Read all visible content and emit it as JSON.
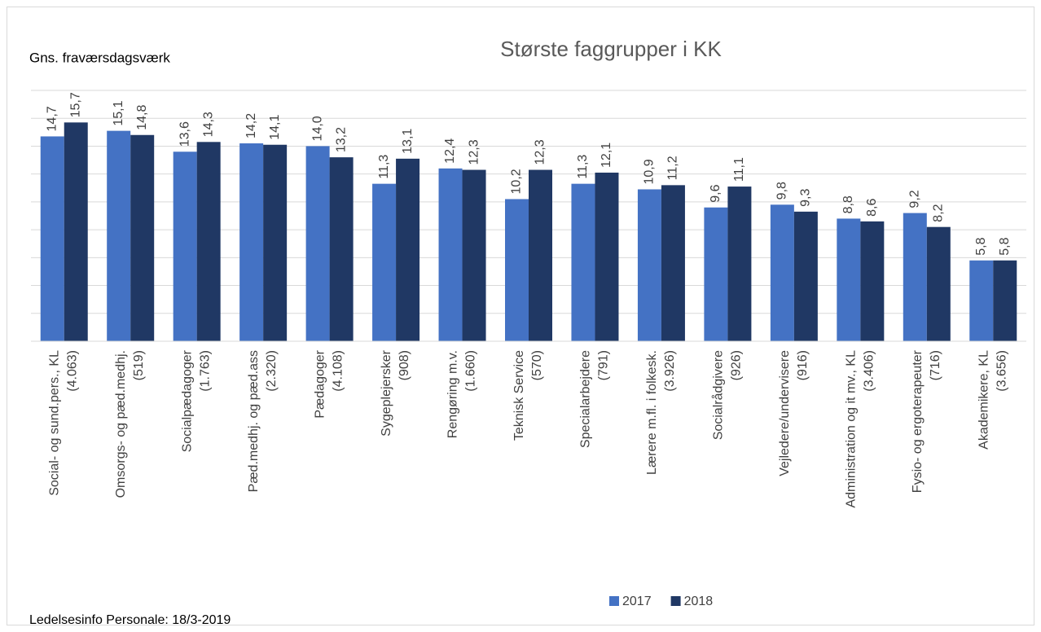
{
  "chart_data": {
    "type": "bar",
    "title": "Største faggrupper i KK",
    "y_label": "Gns. fraværsdagsværk",
    "footer": "Ledelsesinfo Personale: 18/3-2019",
    "categories": [
      "Social- og sund.pers., KL\n(4.063)",
      "Omsorgs- og pæd.medhj.\n(519)",
      "Socialpædagoger\n(1.763)",
      "Pæd.medhj. og pæd.ass\n(2.320)",
      "Pædagoger\n(4.108)",
      "Sygeplejersker\n(908)",
      "Rengøring m.v.\n(1.660)",
      "Teknisk Service\n(570)",
      "Specialarbejdere\n(791)",
      "Lærere m.fl. i folkesk.\n(3.926)",
      "Socialrådgivere\n(926)",
      "Vejledere/undervisere\n(916)",
      "Administration og it mv., KL\n(3.406)",
      "Fysio- og ergoterapeuter\n(716)",
      "Akademikere, KL\n(3.656)"
    ],
    "series": [
      {
        "name": "2017",
        "color": "#4472c4",
        "values": [
          14.7,
          15.1,
          13.6,
          14.2,
          14.0,
          11.3,
          12.4,
          10.2,
          11.3,
          10.9,
          9.6,
          9.8,
          8.8,
          9.2,
          5.8
        ],
        "value_labels": [
          "14,7",
          "15,1",
          "13,6",
          "14,2",
          "14,0",
          "11,3",
          "12,4",
          "10,2",
          "11,3",
          "10,9",
          "9,6",
          "9,8",
          "8,8",
          "9,2",
          "5,8"
        ]
      },
      {
        "name": "2018",
        "color": "#203864",
        "values": [
          15.7,
          14.8,
          14.3,
          14.1,
          13.2,
          13.1,
          12.3,
          12.3,
          12.1,
          11.2,
          11.1,
          9.3,
          8.6,
          8.2,
          5.8
        ],
        "value_labels": [
          "15,7",
          "14,8",
          "14,3",
          "14,1",
          "13,2",
          "13,1",
          "12,3",
          "12,3",
          "12,1",
          "11,2",
          "11,1",
          "9,3",
          "8,6",
          "8,2",
          "5,8"
        ]
      }
    ],
    "ylim": [
      0,
      18
    ],
    "yticks": [
      0,
      2,
      4,
      6,
      8,
      10,
      12,
      14,
      16,
      18
    ],
    "grid": true,
    "legend": "bottom"
  }
}
